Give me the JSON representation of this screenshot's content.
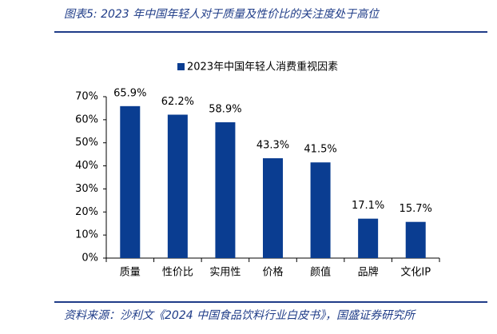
{
  "chart_data": {
    "type": "bar",
    "title": "图表5:  2023 年中国年轻人对于质量及性价比的关注度处于高位",
    "source": "资料来源：沙利文《2024 中国食品饮料行业白皮书》，国盛证券研究所",
    "categories": [
      "质量",
      "性价比",
      "实用性",
      "价格",
      "颜值",
      "品牌",
      "文化IP"
    ],
    "series": [
      {
        "name": "2023年中国年轻人消费重视因素",
        "color": "#0a3d91",
        "values": [
          65.9,
          62.2,
          58.9,
          43.3,
          41.5,
          17.1,
          15.7
        ],
        "value_labels": [
          "65.9%",
          "62.2%",
          "58.9%",
          "43.3%",
          "41.5%",
          "17.1%",
          "15.7%"
        ]
      }
    ],
    "ylim": [
      0,
      70
    ],
    "yticks": [
      {
        "value": 0,
        "label": "0%"
      },
      {
        "value": 10,
        "label": "10%"
      },
      {
        "value": 20,
        "label": "20%"
      },
      {
        "value": 30,
        "label": "30%"
      },
      {
        "value": 40,
        "label": "40%"
      },
      {
        "value": 50,
        "label": "50%"
      },
      {
        "value": 60,
        "label": "60%"
      },
      {
        "value": 70,
        "label": "70%"
      }
    ],
    "grid": false,
    "legend": "top"
  }
}
